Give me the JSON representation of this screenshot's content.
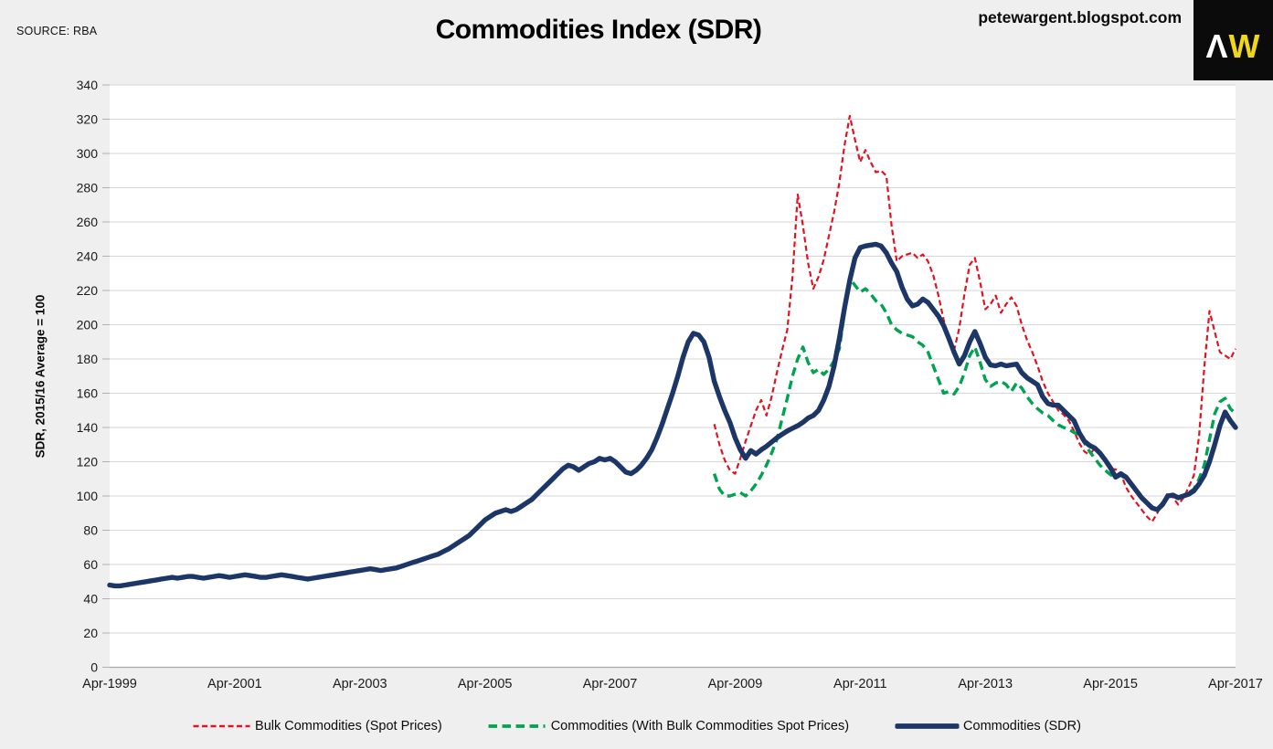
{
  "header": {
    "source": "SOURCE: RBA",
    "title": "Commodities Index (SDR)",
    "site": "petewargent.blogspot.com",
    "logo": {
      "caret": "Λ",
      "w": "W",
      "bg": "#0b0b0b",
      "caret_color": "#ffffff",
      "w_color": "#f0d71a"
    }
  },
  "chart_data": {
    "type": "line",
    "title": "Commodities Index (SDR)",
    "xlabel": "",
    "ylabel": "SDR, 2015/16 Average = 100",
    "ylim": [
      0,
      340
    ],
    "yticks": [
      0,
      20,
      40,
      60,
      80,
      100,
      120,
      140,
      160,
      180,
      200,
      220,
      240,
      260,
      280,
      300,
      320,
      340
    ],
    "grid": "horizontal",
    "legend_position": "bottom",
    "x_axis": {
      "months_total": 216,
      "tick_labels": [
        "Apr-1999",
        "Apr-2001",
        "Apr-2003",
        "Apr-2005",
        "Apr-2007",
        "Apr-2009",
        "Apr-2011",
        "Apr-2013",
        "Apr-2015",
        "Apr-2017"
      ],
      "tick_months": [
        0,
        24,
        48,
        72,
        96,
        120,
        144,
        168,
        192,
        216
      ]
    },
    "series": [
      {
        "name": "Bulk Commodities (Spot Prices)",
        "color": "#e01421",
        "style": "dashed-fine",
        "start_month": 116,
        "values": [
          142,
          130,
          121,
          115,
          113,
          122,
          132,
          141,
          150,
          156,
          147,
          158,
          172,
          185,
          197,
          228,
          276,
          258,
          236,
          221,
          228,
          238,
          252,
          266,
          283,
          305,
          322,
          308,
          295,
          302,
          295,
          289,
          290,
          287,
          258,
          237,
          240,
          241,
          242,
          239,
          241,
          237,
          229,
          217,
          203,
          191,
          185,
          198,
          218,
          235,
          239,
          225,
          209,
          212,
          217,
          207,
          212,
          216,
          211,
          200,
          191,
          184,
          176,
          167,
          160,
          155,
          150,
          147.5,
          144,
          138,
          131,
          126,
          124,
          128,
          124,
          120,
          116,
          115.5,
          113,
          105,
          100,
          96,
          92,
          88,
          85,
          90,
          96,
          102,
          99,
          95,
          99,
          105,
          112,
          135,
          175,
          208,
          196,
          184,
          182,
          180,
          186
        ]
      },
      {
        "name": "Commodities (With Bulk Commodities Spot Prices)",
        "color": "#00a450",
        "style": "dashed",
        "start_month": 116,
        "values": [
          113,
          104,
          100,
          100,
          101,
          102,
          100,
          103,
          107,
          112,
          118,
          125,
          133,
          145,
          157,
          170,
          180,
          187,
          178,
          172,
          174,
          171,
          174,
          179,
          186,
          208,
          227,
          223,
          219,
          221,
          218,
          214,
          212,
          207,
          200,
          197,
          195,
          194,
          193,
          190,
          188,
          184,
          176,
          168,
          160,
          161,
          159.5,
          164,
          172,
          182,
          187,
          178,
          168,
          164,
          166,
          167,
          165,
          161,
          166,
          163,
          158,
          154,
          151,
          148.5,
          147,
          144,
          141.5,
          140,
          139,
          137,
          136,
          131,
          126,
          122,
          118,
          115,
          112.5,
          110.5,
          112,
          110,
          106.5,
          103,
          99.5,
          96,
          93.5,
          92.5,
          96,
          100.5,
          101,
          99.5,
          100.5,
          102,
          104,
          110,
          118,
          133,
          148,
          155,
          157,
          151,
          148
        ]
      },
      {
        "name": "Commodities (SDR)",
        "color": "#1c3667",
        "style": "solid-thick",
        "start_month": 0,
        "values": [
          48,
          47.5,
          47.5,
          48,
          48.5,
          49,
          49.5,
          50,
          50.5,
          51,
          51.5,
          52,
          52.5,
          52,
          52.5,
          53,
          53,
          52.5,
          52,
          52.5,
          53,
          53.5,
          53,
          52.5,
          53,
          53.5,
          54,
          53.5,
          53,
          52.5,
          52.5,
          53,
          53.5,
          54,
          53.5,
          53,
          52.5,
          52,
          51.5,
          52,
          52.5,
          53,
          53.5,
          54,
          54.5,
          55,
          55.5,
          56,
          56.5,
          57,
          57.5,
          57,
          56.5,
          57,
          57.5,
          58,
          59,
          60,
          61,
          62,
          63,
          64,
          65,
          66,
          67.5,
          69,
          71,
          73,
          75,
          77,
          80,
          83,
          86,
          88,
          90,
          91,
          92,
          91,
          92,
          94,
          96,
          98,
          101,
          104,
          107,
          110,
          113,
          116,
          118,
          117,
          115,
          117,
          119,
          120,
          122,
          121,
          122,
          120,
          117,
          114,
          113,
          115,
          118,
          122,
          127,
          134,
          142,
          151,
          160,
          170,
          181,
          190,
          195,
          194,
          190,
          181,
          167,
          158,
          150,
          143,
          134,
          127,
          122,
          126.5,
          124.5,
          127,
          129,
          131.5,
          134,
          136,
          138,
          139.5,
          141,
          143,
          145.5,
          147,
          150,
          156,
          164,
          176,
          192,
          210,
          226,
          239,
          245,
          246,
          246.5,
          247,
          246,
          242,
          236,
          231,
          222,
          215,
          211,
          212,
          215,
          213,
          209,
          205,
          199.5,
          192,
          184,
          177,
          182,
          190,
          196,
          189,
          181,
          176.5,
          176,
          177,
          176,
          176.5,
          177,
          172,
          169,
          167,
          165,
          158,
          154,
          153,
          153,
          150,
          147,
          144,
          137,
          132,
          129.5,
          128,
          125,
          121,
          116.5,
          111,
          113,
          111,
          107,
          103,
          99,
          96,
          93,
          92,
          95,
          100,
          100.5,
          99,
          100,
          101,
          103,
          107,
          112,
          120,
          130,
          141,
          149,
          144,
          140
        ]
      }
    ]
  }
}
